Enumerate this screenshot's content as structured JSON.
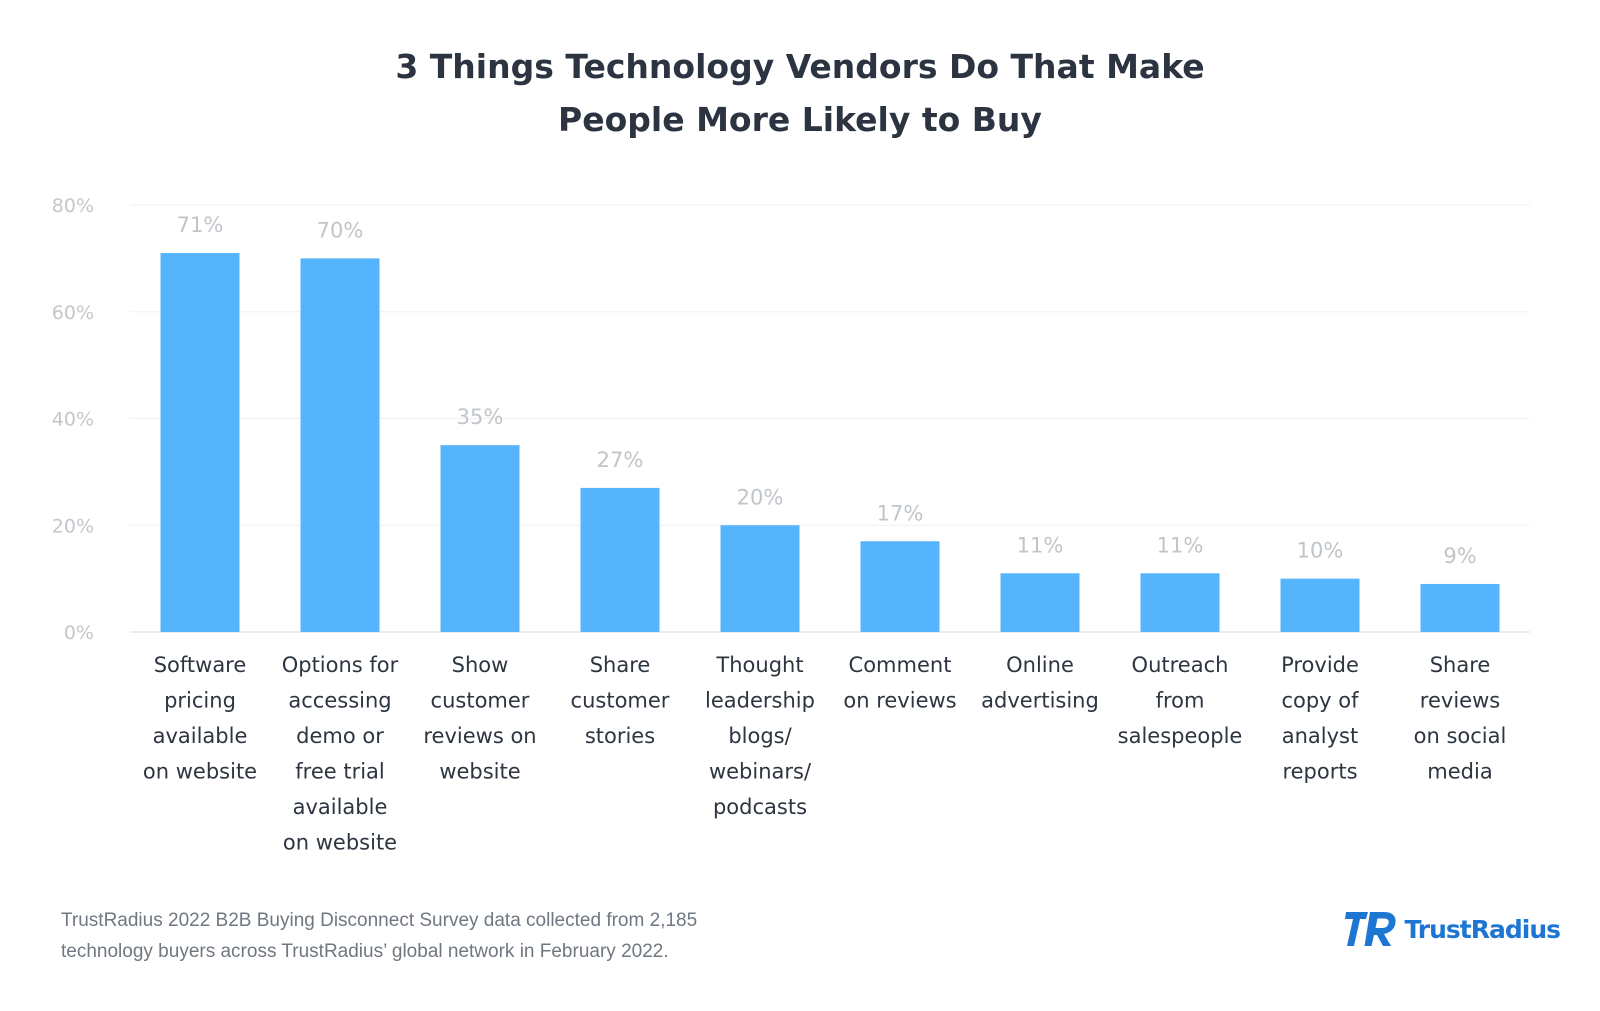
{
  "title_lines": [
    "3 Things Technology Vendors Do That Make",
    "People More Likely to Buy"
  ],
  "chart_data": {
    "type": "bar",
    "title": "3 Things Technology Vendors Do That Make People More Likely to Buy",
    "categories": [
      "Software pricing available on website",
      "Options for accessing demo or free trial available on website",
      "Show customer reviews on website",
      "Share customer stories",
      "Thought leadership blogs/ webinars/ podcasts",
      "Comment on reviews",
      "Online advertising",
      "Outreach from salespeople",
      "Provide copy of analyst reports",
      "Share reviews on social media"
    ],
    "category_lines": [
      [
        "Software",
        "pricing",
        "available",
        "on website"
      ],
      [
        "Options for",
        "accessing",
        "demo or",
        "free trial",
        "available",
        "on website"
      ],
      [
        "Show",
        "customer",
        "reviews on",
        "website"
      ],
      [
        "Share",
        "customer",
        "stories"
      ],
      [
        "Thought",
        "leadership",
        "blogs/",
        "webinars/",
        "podcasts"
      ],
      [
        "Comment",
        "on reviews"
      ],
      [
        "Online",
        "advertising"
      ],
      [
        "Outreach",
        "from",
        "salespeople"
      ],
      [
        "Provide",
        "copy of",
        "analyst",
        "reports"
      ],
      [
        "Share",
        "reviews",
        "on social",
        "media"
      ]
    ],
    "values": [
      71,
      70,
      35,
      27,
      20,
      17,
      11,
      11,
      10,
      9
    ],
    "value_labels": [
      "71%",
      "70%",
      "35%",
      "27%",
      "20%",
      "17%",
      "11%",
      "11%",
      "10%",
      "9%"
    ],
    "ylim": [
      0,
      80
    ],
    "yticks": [
      0,
      20,
      40,
      60,
      80
    ],
    "ytick_labels": [
      "0%",
      "20%",
      "40%",
      "60%",
      "80%"
    ],
    "grid": true,
    "legend": "none",
    "bar_color": "#55b4fc"
  },
  "footnote_lines": [
    "TrustRadius 2022 B2B Buying Disconnect Survey data collected from 2,185",
    "technology buyers across TrustRadius’ global network in February 2022."
  ],
  "brand": {
    "name": "TrustRadius",
    "color": "#1e76d3",
    "icon": "trustradius-logo-icon"
  }
}
